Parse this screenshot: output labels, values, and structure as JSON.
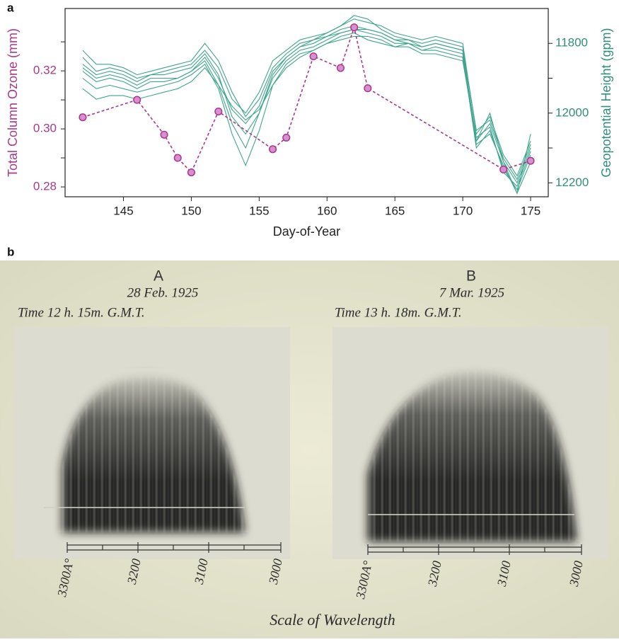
{
  "panel_labels": [
    "a",
    "b"
  ],
  "chart_data": {
    "type": "line",
    "x_label": "Day-of-Year",
    "y_label": "Total Column Ozone (mm)",
    "y2_label": "Geopotential Height (gpm)",
    "xlim": [
      140.7,
      176.3
    ],
    "xticks": [
      145,
      150,
      155,
      160,
      165,
      170,
      175
    ],
    "ylim": [
      0.2766,
      0.3415
    ],
    "yticks": [
      0.28,
      {
        "value": 0.3,
        "label": "0.30"
      },
      0.32
    ],
    "yminorticks": [
      0.29,
      0.31,
      0.33
    ],
    "y2lim": [
      12240,
      11700
    ],
    "y2ticks": [
      11800,
      12000,
      12200
    ],
    "y2minorticks": [
      11900,
      12100
    ],
    "y_color": "#a8388f",
    "y2_color": "#2f8f78",
    "x": [
      142,
      143,
      144,
      145,
      146,
      147,
      148,
      149,
      150,
      151,
      152,
      153,
      154,
      155,
      156,
      157,
      158,
      159,
      160,
      161,
      162,
      163,
      164,
      165,
      166,
      167,
      168,
      169,
      170,
      171,
      172,
      173,
      174,
      175
    ],
    "series": [
      {
        "color": "#3fa58d",
        "axis": "y2",
        "values": [
          11870,
          11900,
          11890,
          11900,
          11920,
          11900,
          11900,
          11900,
          11880,
          11840,
          11900,
          11990,
          12030,
          11980,
          11880,
          11840,
          11810,
          11800,
          11780,
          11760,
          11750,
          11760,
          11770,
          11790,
          11790,
          11810,
          11800,
          11810,
          11820,
          12080,
          12030,
          12140,
          12200,
          12100
        ]
      },
      {
        "color": "#3fa58d",
        "axis": "y2",
        "values": [
          11840,
          11880,
          11870,
          11880,
          11900,
          11890,
          11880,
          11870,
          11860,
          11820,
          11870,
          11960,
          12000,
          11940,
          11850,
          11820,
          11790,
          11780,
          11770,
          11750,
          11730,
          11740,
          11750,
          11770,
          11780,
          11790,
          11780,
          11790,
          11800,
          12060,
          12010,
          12120,
          12180,
          12080
        ]
      },
      {
        "color": "#3fa58d",
        "axis": "y2",
        "values": [
          11900,
          11930,
          11920,
          11930,
          11940,
          11930,
          11920,
          11910,
          11890,
          11860,
          11930,
          12060,
          12150,
          12050,
          11920,
          11860,
          11830,
          11820,
          11800,
          11780,
          11770,
          11790,
          11800,
          11810,
          11800,
          11820,
          11810,
          11820,
          11830,
          12100,
          12050,
          12160,
          12220,
          12120
        ]
      },
      {
        "color": "#3fa58d",
        "axis": "y2",
        "values": [
          11820,
          11860,
          11860,
          11870,
          11890,
          11880,
          11870,
          11860,
          11850,
          11800,
          11850,
          11940,
          12010,
          11960,
          11870,
          11830,
          11800,
          11790,
          11770,
          11750,
          11720,
          11730,
          11760,
          11780,
          11790,
          11800,
          11790,
          11800,
          11810,
          12050,
          12020,
          12130,
          12190,
          12090
        ]
      },
      {
        "color": "#3fa58d",
        "axis": "y2",
        "values": [
          11880,
          11910,
          11900,
          11910,
          11930,
          11910,
          11910,
          11900,
          11880,
          11850,
          11920,
          12030,
          12100,
          12000,
          11900,
          11850,
          11820,
          11810,
          11790,
          11770,
          11760,
          11770,
          11780,
          11800,
          11800,
          11820,
          11820,
          11830,
          11840,
          12090,
          12060,
          12150,
          12230,
          12140
        ]
      },
      {
        "color": "#3fa58d",
        "axis": "y2",
        "values": [
          11930,
          11960,
          11950,
          11950,
          11960,
          11950,
          11940,
          11930,
          11910,
          11870,
          11920,
          11980,
          12020,
          11990,
          11920,
          11870,
          11840,
          11820,
          11800,
          11790,
          11780,
          11780,
          11790,
          11810,
          11810,
          11830,
          11830,
          11840,
          11850,
          12070,
          12040,
          12170,
          12210,
          12110
        ]
      },
      {
        "color": "#3fa58d",
        "axis": "y2",
        "values": [
          11860,
          11890,
          11880,
          11890,
          11910,
          11890,
          11890,
          11880,
          11870,
          11830,
          11890,
          12010,
          12060,
          12000,
          11890,
          11840,
          11810,
          11790,
          11780,
          11770,
          11760,
          11760,
          11770,
          11790,
          11800,
          11810,
          11800,
          11810,
          11820,
          12080,
          12000,
          12140,
          12230,
          12060
        ]
      },
      {
        "color": "#a8388f",
        "axis": "y",
        "dashed": true,
        "markers": true,
        "x": [
          142,
          146,
          148,
          149,
          150,
          152,
          156,
          157,
          159,
          161,
          162,
          163,
          173,
          175
        ],
        "values": [
          0.304,
          0.31,
          0.298,
          0.29,
          0.285,
          0.306,
          0.293,
          0.297,
          0.325,
          0.321,
          0.335,
          0.314,
          0.286,
          0.289
        ]
      }
    ]
  },
  "photo": {
    "plates": [
      {
        "label": "A",
        "date": "28 Feb. 1925",
        "time": "Time 12 h. 15m. G.M.T.",
        "scale": [
          "3300A°",
          "3200",
          "3100",
          "3000"
        ]
      },
      {
        "label": "B",
        "date": "7 Mar. 1925",
        "time": "Time 13 h. 18m. G.M.T.",
        "scale": [
          "3300A°",
          "3200",
          "3100",
          "3000"
        ]
      }
    ],
    "caption": "Scale of Wavelength"
  }
}
